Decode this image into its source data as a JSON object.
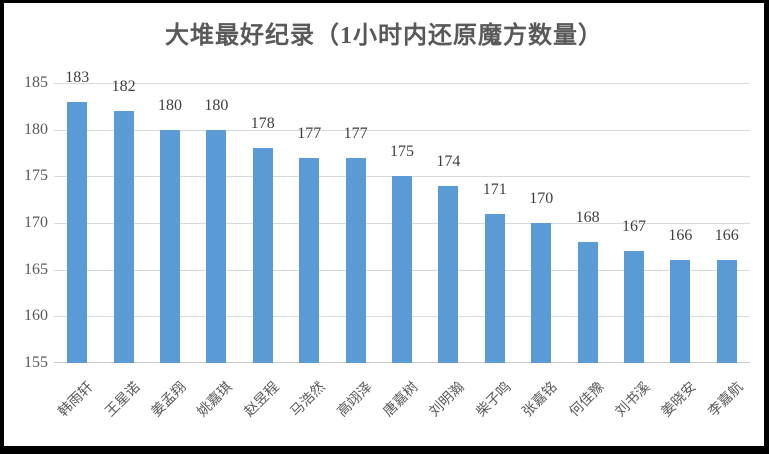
{
  "frame": {
    "background": "#ffffff",
    "border_color": "#000000"
  },
  "chart_data": {
    "type": "bar",
    "title": "大堆最好纪录（1小时内还原魔方数量）",
    "categories": [
      "韩雨轩",
      "王星诺",
      "姜孟翔",
      "姚嘉琪",
      "赵昱程",
      "马浩然",
      "高翊泽",
      "唐嘉树",
      "刘明瀚",
      "柴子鸣",
      "张嘉铭",
      "何佳豫",
      "刘书溪",
      "姜晓安",
      "李嘉航"
    ],
    "values": [
      183,
      182,
      180,
      180,
      178,
      177,
      177,
      175,
      174,
      171,
      170,
      168,
      167,
      166,
      166
    ],
    "xlabel": "",
    "ylabel": "",
    "ylim": [
      155,
      185
    ],
    "yticks": [
      155,
      160,
      165,
      170,
      175,
      180,
      185
    ],
    "grid": true,
    "legend_position": "none",
    "data_labels": true,
    "colors": {
      "bar": "#5b9bd5",
      "gridline": "#d9d9d9",
      "axis_labels": "#595959",
      "data_labels": "#3f3f3f",
      "title": "#595959"
    }
  }
}
